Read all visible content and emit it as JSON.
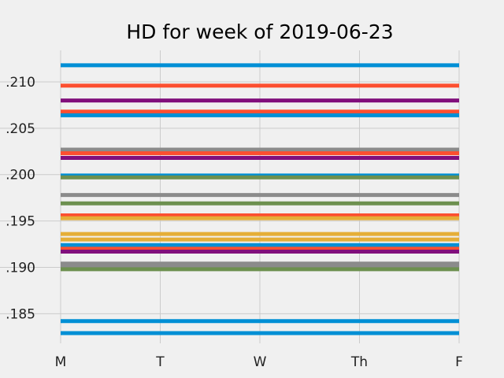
{
  "chart_data": {
    "type": "line",
    "title": "HD for week of 2019-06-23",
    "xlabel": "",
    "ylabel": "",
    "categories": [
      "M",
      "T",
      "W",
      "Th",
      "F"
    ],
    "ylim": [
      0.1818,
      0.2134
    ],
    "yticks": [
      0.185,
      0.19,
      0.195,
      0.2,
      0.205,
      0.21
    ],
    "ytick_labels": [
      ".185",
      ".190",
      ".195",
      ".200",
      ".205",
      ".210"
    ],
    "grid": true,
    "legend": "none",
    "series": [
      {
        "values": [
          0.2118,
          0.2118,
          0.2118,
          0.2118,
          0.2118
        ],
        "color": "#008fd5"
      },
      {
        "values": [
          0.2096,
          0.2096,
          0.2096,
          0.2096,
          0.2096
        ],
        "color": "#fc4f30"
      },
      {
        "values": [
          0.208,
          0.208,
          0.208,
          0.208,
          0.208
        ],
        "color": "#810f7c"
      },
      {
        "values": [
          0.2068,
          0.2068,
          0.2068,
          0.2068,
          0.2068
        ],
        "color": "#fc4f30"
      },
      {
        "values": [
          0.2064,
          0.2064,
          0.2064,
          0.2064,
          0.2064
        ],
        "color": "#008fd5"
      },
      {
        "values": [
          0.2027,
          0.2027,
          0.2027,
          0.2027,
          0.2027
        ],
        "color": "#8b8b8b"
      },
      {
        "values": [
          0.2023,
          0.2023,
          0.2023,
          0.2023,
          0.2023
        ],
        "color": "#fc4f30"
      },
      {
        "values": [
          0.2018,
          0.2018,
          0.2018,
          0.2018,
          0.2018
        ],
        "color": "#810f7c"
      },
      {
        "values": [
          0.1999,
          0.1999,
          0.1999,
          0.1999,
          0.1999
        ],
        "color": "#008fd5"
      },
      {
        "values": [
          0.1997,
          0.1997,
          0.1997,
          0.1997,
          0.1997
        ],
        "color": "#6d904f"
      },
      {
        "values": [
          0.1978,
          0.1978,
          0.1978,
          0.1978,
          0.1978
        ],
        "color": "#8b8b8b"
      },
      {
        "values": [
          0.1969,
          0.1969,
          0.1969,
          0.1969,
          0.1969
        ],
        "color": "#6d904f"
      },
      {
        "values": [
          0.1956,
          0.1956,
          0.1956,
          0.1956,
          0.1956
        ],
        "color": "#fc4f30"
      },
      {
        "values": [
          0.1953,
          0.1953,
          0.1953,
          0.1953,
          0.1953
        ],
        "color": "#e5ae38"
      },
      {
        "values": [
          0.1936,
          0.1936,
          0.1936,
          0.1936,
          0.1936
        ],
        "color": "#e5ae38"
      },
      {
        "values": [
          0.193,
          0.193,
          0.193,
          0.193,
          0.193
        ],
        "color": "#e5ae38"
      },
      {
        "values": [
          0.1924,
          0.1924,
          0.1924,
          0.1924,
          0.1924
        ],
        "color": "#008fd5"
      },
      {
        "values": [
          0.192,
          0.192,
          0.192,
          0.192,
          0.192
        ],
        "color": "#fc4f30"
      },
      {
        "values": [
          0.1917,
          0.1917,
          0.1917,
          0.1917,
          0.1917
        ],
        "color": "#810f7c"
      },
      {
        "values": [
          0.1904,
          0.1904,
          0.1904,
          0.1904,
          0.1904
        ],
        "color": "#8b8b8b"
      },
      {
        "values": [
          0.1901,
          0.1901,
          0.1901,
          0.1901,
          0.1901
        ],
        "color": "#8b8b8b"
      },
      {
        "values": [
          0.1898,
          0.1898,
          0.1898,
          0.1898,
          0.1898
        ],
        "color": "#6d904f"
      },
      {
        "values": [
          0.1842,
          0.1842,
          0.1842,
          0.1842,
          0.1842
        ],
        "color": "#008fd5"
      },
      {
        "values": [
          0.1829,
          0.1829,
          0.1829,
          0.1829,
          0.1829
        ],
        "color": "#008fd5"
      }
    ]
  }
}
